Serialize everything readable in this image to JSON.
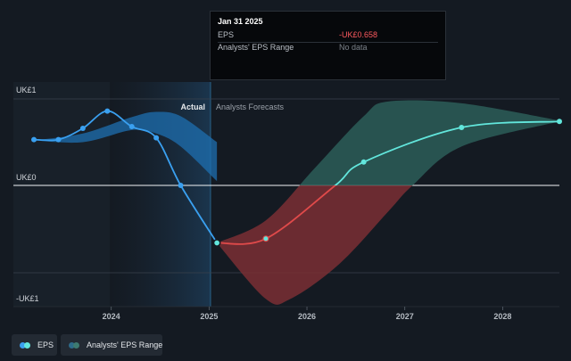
{
  "chart_data": {
    "type": "line",
    "y_axis_labels": [
      "UK£1",
      "UK£0",
      "-UK£1"
    ],
    "ylim": [
      -1.0,
      1.0
    ],
    "x_tick_labels": [
      "2024",
      "2025",
      "2026",
      "2027",
      "2028"
    ],
    "x_ticks": [
      2024.0,
      2025.0,
      2026.0,
      2027.0,
      2028.0
    ],
    "xlim": [
      2023.0,
      2028.58
    ],
    "section_labels": {
      "actual": "Actual",
      "forecast": "Analysts Forecasts"
    },
    "forecast_start": 2025.08,
    "series": [
      {
        "name": "EPS",
        "color": "#3aa0f0",
        "points": [
          [
            2023.21,
            0.53
          ],
          [
            2023.46,
            0.53
          ],
          [
            2023.71,
            0.66
          ],
          [
            2023.96,
            0.86
          ],
          [
            2024.21,
            0.68
          ],
          [
            2024.46,
            0.55
          ],
          [
            2024.71,
            0.0
          ],
          [
            2025.08,
            -0.658
          ]
        ]
      },
      {
        "name": "EPS Forecast",
        "color_negative": "#e04a4a",
        "color_positive": "#62e6dc",
        "points": [
          [
            2025.08,
            -0.658
          ],
          [
            2025.58,
            -0.61
          ],
          [
            2026.29,
            0.0
          ],
          [
            2026.58,
            0.27
          ],
          [
            2027.58,
            0.67
          ],
          [
            2028.58,
            0.74
          ]
        ]
      }
    ],
    "ranges": [
      {
        "name": "Actual EPS range",
        "color": "#1e6fb0",
        "upper": [
          [
            2023.21,
            0.52
          ],
          [
            2023.71,
            0.6
          ],
          [
            2024.21,
            0.79
          ],
          [
            2024.46,
            0.85
          ],
          [
            2024.71,
            0.8
          ],
          [
            2025.08,
            0.5
          ]
        ],
        "lower": [
          [
            2023.21,
            0.52
          ],
          [
            2023.71,
            0.5
          ],
          [
            2024.21,
            0.64
          ],
          [
            2024.46,
            0.6
          ],
          [
            2024.71,
            0.45
          ],
          [
            2025.08,
            0.05
          ]
        ]
      },
      {
        "name": "Analysts' EPS Range",
        "color_negative": "#7a2f34",
        "color_positive": "#2c5e58",
        "upper": [
          [
            2025.08,
            -0.658
          ],
          [
            2025.58,
            -0.4
          ],
          [
            2026.08,
            0.2
          ],
          [
            2026.58,
            0.8
          ],
          [
            2026.83,
            0.97
          ],
          [
            2027.58,
            0.95
          ],
          [
            2028.58,
            0.75
          ]
        ],
        "lower": [
          [
            2025.08,
            -0.658
          ],
          [
            2025.58,
            -1.3
          ],
          [
            2025.83,
            -1.3
          ],
          [
            2026.33,
            -0.9
          ],
          [
            2026.83,
            -0.3
          ],
          [
            2027.08,
            0.0
          ],
          [
            2027.58,
            0.45
          ],
          [
            2028.58,
            0.74
          ]
        ]
      }
    ]
  },
  "tooltip": {
    "date": "Jan 31 2025",
    "rows": [
      {
        "label": "EPS",
        "value": "-UK£0.658"
      },
      {
        "label": "Analysts' EPS Range",
        "value": "No data"
      }
    ]
  },
  "legend": [
    {
      "label": "EPS",
      "colors": [
        "#3aa0f0",
        "#62e6dc"
      ]
    },
    {
      "label": "Analysts' EPS Range",
      "colors": [
        "#2d6b8a",
        "#3d7a70"
      ]
    }
  ]
}
